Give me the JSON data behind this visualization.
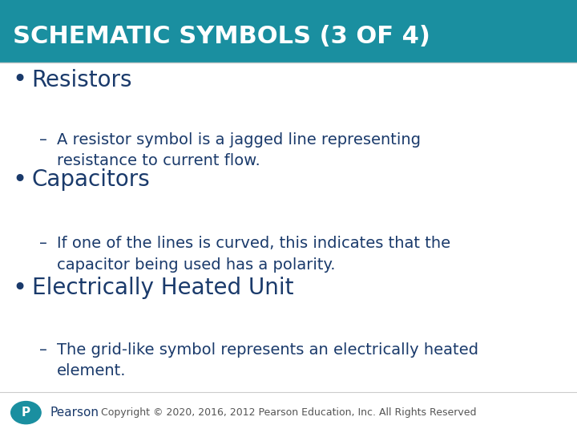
{
  "title": "SCHEMATIC SYMBOLS (3 OF 4)",
  "title_bg_color": "#1a8fa0",
  "title_text_color": "#ffffff",
  "body_bg_color": "#ffffff",
  "bullet_color": "#1a3a6b",
  "sub_text_color": "#1a3a6b",
  "bullet_points": [
    {
      "bullet": "Resistors",
      "sub": "A resistor symbol is a jagged line representing\nresistance to current flow."
    },
    {
      "bullet": "Capacitors",
      "sub": "If one of the lines is curved, this indicates that the\ncapacitor being used has a polarity."
    },
    {
      "bullet": "Electrically Heated Unit",
      "sub": "The grid-like symbol represents an electrically heated\nelement."
    }
  ],
  "footer_text": "Copyright © 2020, 2016, 2012 Pearson Education, Inc. All Rights Reserved",
  "pearson_text": "Pearson",
  "pearson_logo_color": "#1a8fa0",
  "footer_text_color": "#555555",
  "title_font_size": 22,
  "bullet_font_size": 20,
  "sub_font_size": 14
}
